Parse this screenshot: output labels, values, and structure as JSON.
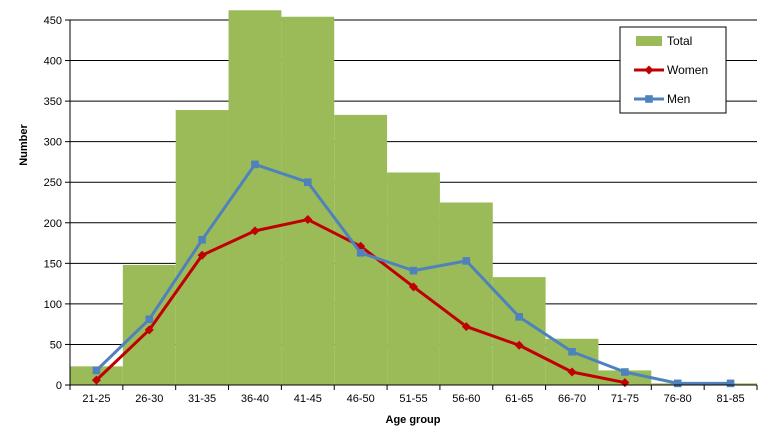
{
  "chart_data": {
    "type": "bar",
    "categories": [
      "21-25",
      "26-30",
      "31-35",
      "36-40",
      "41-45",
      "46-50",
      "51-55",
      "56-60",
      "61-65",
      "66-70",
      "71-75",
      "76-80",
      "81-85"
    ],
    "xlabel": "Age group",
    "ylabel": "Number",
    "ylim": [
      0,
      450
    ],
    "yticks": [
      0,
      50,
      100,
      150,
      200,
      250,
      300,
      350,
      400,
      450
    ],
    "grid": true,
    "legend_position": "top-right",
    "series": [
      {
        "name": "Total",
        "kind": "bar",
        "color": "#9bbb59",
        "values": [
          23,
          148,
          339,
          462,
          454,
          333,
          262,
          225,
          133,
          57,
          18,
          2,
          2
        ]
      },
      {
        "name": "Women",
        "kind": "line",
        "marker": "diamond",
        "color": "#c00000",
        "values": [
          6,
          68,
          160,
          190,
          204,
          171,
          121,
          72,
          49,
          16,
          3,
          null,
          null
        ]
      },
      {
        "name": "Men",
        "kind": "line",
        "marker": "square",
        "color": "#4f81bd",
        "values": [
          18,
          81,
          179,
          272,
          250,
          163,
          141,
          153,
          84,
          41,
          16,
          2,
          2
        ]
      }
    ]
  }
}
